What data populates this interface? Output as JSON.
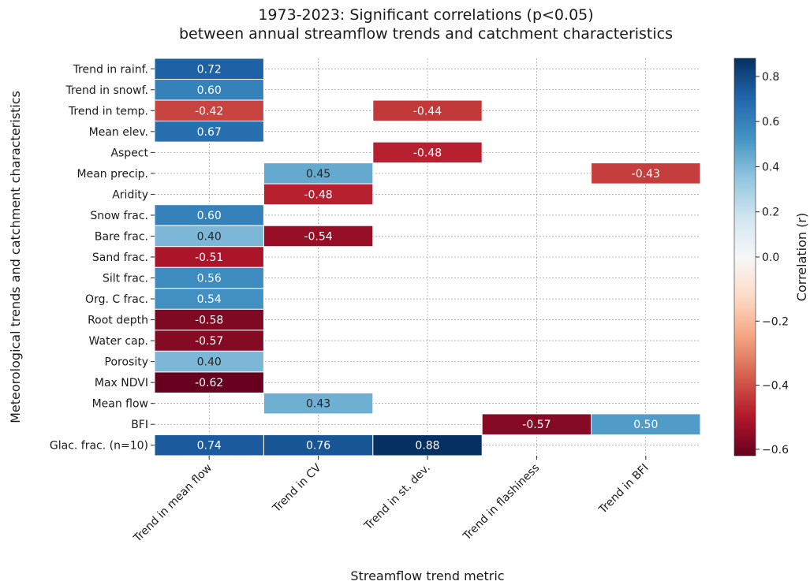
{
  "chart_data": {
    "type": "heatmap",
    "title": "1973-2023: Significant correlations (p<0.05)",
    "subtitle": "between annual streamflow trends and catchment characteristics",
    "xlabel": "Streamflow trend metric",
    "ylabel": "Meteorological trends and catchment characteristics",
    "columns": [
      "Trend in mean flow",
      "Trend in CV",
      "Trend in st. dev.",
      "Trend in flashiness",
      "Trend in BFI"
    ],
    "rows": [
      "Trend in rainf.",
      "Trend in snowf.",
      "Trend in temp.",
      "Mean elev.",
      "Aspect",
      "Mean precip.",
      "Aridity",
      "Snow frac.",
      "Bare frac.",
      "Sand frac.",
      "Silt frac.",
      "Org. C frac.",
      "Root depth",
      "Water cap.",
      "Porosity",
      "Max NDVI",
      "Mean flow",
      "BFI",
      "Glac. frac. (n=10)"
    ],
    "values": [
      [
        0.72,
        null,
        null,
        null,
        null
      ],
      [
        0.6,
        null,
        null,
        null,
        null
      ],
      [
        -0.42,
        null,
        -0.44,
        null,
        null
      ],
      [
        0.67,
        null,
        null,
        null,
        null
      ],
      [
        null,
        null,
        -0.48,
        null,
        null
      ],
      [
        null,
        0.45,
        null,
        null,
        -0.43
      ],
      [
        null,
        -0.48,
        null,
        null,
        null
      ],
      [
        0.6,
        null,
        null,
        null,
        null
      ],
      [
        0.4,
        -0.54,
        null,
        null,
        null
      ],
      [
        -0.51,
        null,
        null,
        null,
        null
      ],
      [
        0.56,
        null,
        null,
        null,
        null
      ],
      [
        0.54,
        null,
        null,
        null,
        null
      ],
      [
        -0.58,
        null,
        null,
        null,
        null
      ],
      [
        -0.57,
        null,
        null,
        null,
        null
      ],
      [
        0.4,
        null,
        null,
        null,
        null
      ],
      [
        -0.62,
        null,
        null,
        null,
        null
      ],
      [
        null,
        0.43,
        null,
        null,
        null
      ],
      [
        null,
        null,
        null,
        -0.57,
        0.5
      ],
      [
        0.74,
        0.76,
        0.88,
        null,
        null
      ]
    ],
    "colorbar": {
      "label": "Correlation (r)",
      "range": [
        -0.62,
        0.88
      ],
      "ticks": [
        -0.6,
        -0.4,
        -0.2,
        0.0,
        0.2,
        0.4,
        0.6,
        0.8
      ],
      "tick_labels": [
        "−0.6",
        "−0.4",
        "−0.2",
        "0.0",
        "0.2",
        "0.4",
        "0.6",
        "0.8"
      ],
      "colormap": "RdBu",
      "center": 0.0
    },
    "grid": true
  }
}
